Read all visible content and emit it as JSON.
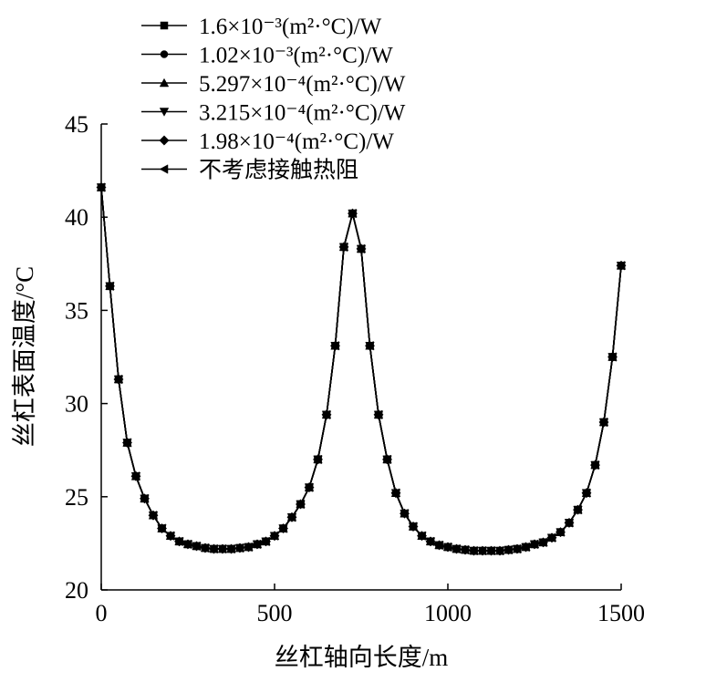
{
  "chart_data": {
    "type": "line",
    "xlabel": "丝杠轴向长度/m",
    "ylabel": "丝杠表面温度/°C",
    "xlim": [
      0,
      1500
    ],
    "xticks": [
      0,
      500,
      1000,
      1500
    ],
    "ylim": [
      20,
      45
    ],
    "yticks": [
      20,
      25,
      30,
      35,
      40,
      45
    ],
    "legend": "upper left",
    "x": [
      0,
      25,
      50,
      75,
      100,
      125,
      150,
      175,
      200,
      225,
      250,
      275,
      300,
      325,
      350,
      375,
      400,
      425,
      450,
      475,
      500,
      525,
      550,
      575,
      600,
      625,
      650,
      675,
      700,
      725,
      750,
      775,
      800,
      825,
      850,
      875,
      900,
      925,
      950,
      975,
      1000,
      1025,
      1050,
      1075,
      1100,
      1125,
      1150,
      1175,
      1200,
      1225,
      1250,
      1275,
      1300,
      1325,
      1350,
      1375,
      1400,
      1425,
      1450,
      1475,
      1500
    ],
    "series": [
      {
        "name": "1.6×10⁻³(m²·°C)/W",
        "color": "#000000",
        "marker": "square",
        "values": [
          41.6,
          36.3,
          31.3,
          27.9,
          26.1,
          24.9,
          24.0,
          23.3,
          22.9,
          22.6,
          22.45,
          22.35,
          22.25,
          22.2,
          22.2,
          22.2,
          22.25,
          22.3,
          22.45,
          22.6,
          22.9,
          23.3,
          23.9,
          24.6,
          25.5,
          27.0,
          29.4,
          33.1,
          38.4,
          40.2,
          38.3,
          33.1,
          29.4,
          27.0,
          25.2,
          24.1,
          23.4,
          22.9,
          22.6,
          22.4,
          22.3,
          22.2,
          22.15,
          22.1,
          22.1,
          22.1,
          22.1,
          22.15,
          22.2,
          22.3,
          22.45,
          22.55,
          22.8,
          23.1,
          23.6,
          24.3,
          25.2,
          26.7,
          29.0,
          32.5,
          37.4
        ]
      },
      {
        "name": "1.02×10⁻³(m²·°C)/W",
        "color": "#000000",
        "marker": "circle",
        "values": [
          41.6,
          36.3,
          31.3,
          27.9,
          26.1,
          24.9,
          24.0,
          23.3,
          22.9,
          22.6,
          22.45,
          22.35,
          22.25,
          22.2,
          22.2,
          22.2,
          22.25,
          22.3,
          22.45,
          22.6,
          22.9,
          23.3,
          23.9,
          24.6,
          25.5,
          27.0,
          29.4,
          33.1,
          38.4,
          40.2,
          38.3,
          33.1,
          29.4,
          27.0,
          25.2,
          24.1,
          23.4,
          22.9,
          22.6,
          22.4,
          22.3,
          22.2,
          22.15,
          22.1,
          22.1,
          22.1,
          22.1,
          22.15,
          22.2,
          22.3,
          22.45,
          22.55,
          22.8,
          23.1,
          23.6,
          24.3,
          25.2,
          26.7,
          29.0,
          32.5,
          37.4
        ]
      },
      {
        "name": "5.297×10⁻⁴(m²·°C)/W",
        "color": "#000000",
        "marker": "triangle-up",
        "values": [
          41.6,
          36.3,
          31.3,
          27.9,
          26.1,
          24.9,
          24.0,
          23.3,
          22.9,
          22.6,
          22.45,
          22.35,
          22.25,
          22.2,
          22.2,
          22.2,
          22.25,
          22.3,
          22.45,
          22.6,
          22.9,
          23.3,
          23.9,
          24.6,
          25.5,
          27.0,
          29.4,
          33.1,
          38.4,
          40.2,
          38.3,
          33.1,
          29.4,
          27.0,
          25.2,
          24.1,
          23.4,
          22.9,
          22.6,
          22.4,
          22.3,
          22.2,
          22.15,
          22.1,
          22.1,
          22.1,
          22.1,
          22.15,
          22.2,
          22.3,
          22.45,
          22.55,
          22.8,
          23.1,
          23.6,
          24.3,
          25.2,
          26.7,
          29.0,
          32.5,
          37.4
        ]
      },
      {
        "name": "3.215×10⁻⁴(m²·°C)/W",
        "color": "#000000",
        "marker": "triangle-down",
        "values": [
          41.6,
          36.3,
          31.3,
          27.9,
          26.1,
          24.9,
          24.0,
          23.3,
          22.9,
          22.6,
          22.45,
          22.35,
          22.25,
          22.2,
          22.2,
          22.2,
          22.25,
          22.3,
          22.45,
          22.6,
          22.9,
          23.3,
          23.9,
          24.6,
          25.5,
          27.0,
          29.4,
          33.1,
          38.4,
          40.2,
          38.3,
          33.1,
          29.4,
          27.0,
          25.2,
          24.1,
          23.4,
          22.9,
          22.6,
          22.4,
          22.3,
          22.2,
          22.15,
          22.1,
          22.1,
          22.1,
          22.1,
          22.15,
          22.2,
          22.3,
          22.45,
          22.55,
          22.8,
          23.1,
          23.6,
          24.3,
          25.2,
          26.7,
          29.0,
          32.5,
          37.4
        ]
      },
      {
        "name": "1.98×10⁻⁴(m²·°C)/W",
        "color": "#000000",
        "marker": "diamond",
        "values": [
          41.6,
          36.3,
          31.3,
          27.9,
          26.1,
          24.9,
          24.0,
          23.3,
          22.9,
          22.6,
          22.45,
          22.35,
          22.25,
          22.2,
          22.2,
          22.2,
          22.25,
          22.3,
          22.45,
          22.6,
          22.9,
          23.3,
          23.9,
          24.6,
          25.5,
          27.0,
          29.4,
          33.1,
          38.4,
          40.2,
          38.3,
          33.1,
          29.4,
          27.0,
          25.2,
          24.1,
          23.4,
          22.9,
          22.6,
          22.4,
          22.3,
          22.2,
          22.15,
          22.1,
          22.1,
          22.1,
          22.1,
          22.15,
          22.2,
          22.3,
          22.45,
          22.55,
          22.8,
          23.1,
          23.6,
          24.3,
          25.2,
          26.7,
          29.0,
          32.5,
          37.4
        ]
      },
      {
        "name": "不考虑接触热阻",
        "color": "#000000",
        "marker": "triangle-left",
        "values": [
          41.6,
          36.3,
          31.3,
          27.9,
          26.1,
          24.9,
          24.0,
          23.3,
          22.9,
          22.6,
          22.45,
          22.35,
          22.25,
          22.2,
          22.2,
          22.2,
          22.25,
          22.3,
          22.45,
          22.6,
          22.9,
          23.3,
          23.9,
          24.6,
          25.5,
          27.0,
          29.4,
          33.1,
          38.4,
          40.2,
          38.3,
          33.1,
          29.4,
          27.0,
          25.2,
          24.1,
          23.4,
          22.9,
          22.6,
          22.4,
          22.3,
          22.2,
          22.15,
          22.1,
          22.1,
          22.1,
          22.1,
          22.15,
          22.2,
          22.3,
          22.45,
          22.55,
          22.8,
          23.1,
          23.6,
          24.3,
          25.2,
          26.7,
          29.0,
          32.5,
          37.4
        ]
      }
    ]
  }
}
